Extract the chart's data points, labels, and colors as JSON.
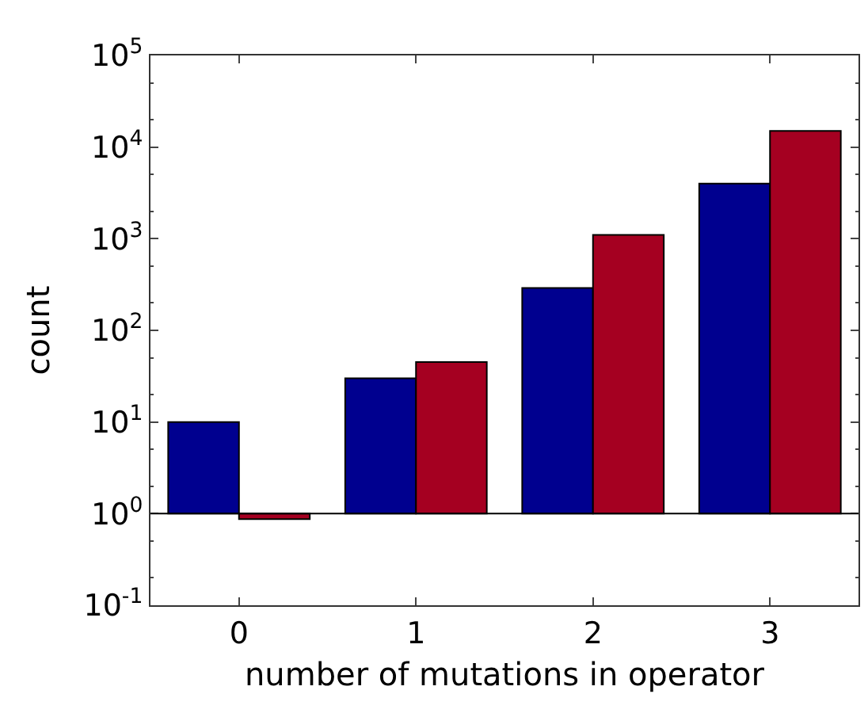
{
  "chart_data": {
    "type": "bar",
    "xlabel": "number of mutations in operator",
    "ylabel": "count",
    "categories": [
      "0",
      "1",
      "2",
      "3"
    ],
    "series": [
      {
        "color": "#00008f",
        "values": [
          9,
          29,
          289,
          3999
        ],
        "base": [
          1,
          1,
          1,
          1
        ]
      },
      {
        "color": "#a50021",
        "values": [
          -0.13,
          44,
          1099,
          14999
        ],
        "base": [
          1,
          1,
          1,
          1
        ]
      }
    ],
    "log": "y",
    "ylim": [
      0.1,
      100000
    ],
    "yticks": [
      {
        "value": 0.1,
        "label": "10$^{-1}$"
      },
      {
        "value": 1,
        "label": "10$^{0}$"
      },
      {
        "value": 10,
        "label": "10$^{1}$"
      },
      {
        "value": 100,
        "label": "10$^{2}$"
      },
      {
        "value": 1000,
        "label": "10$^{3}$"
      },
      {
        "value": 10000,
        "label": "10$^{4}$"
      },
      {
        "value": 100000,
        "label": "10$^{5}$"
      }
    ],
    "ref_lines": [
      {
        "axis": "y",
        "value": 1,
        "color": "#000000"
      }
    ]
  }
}
